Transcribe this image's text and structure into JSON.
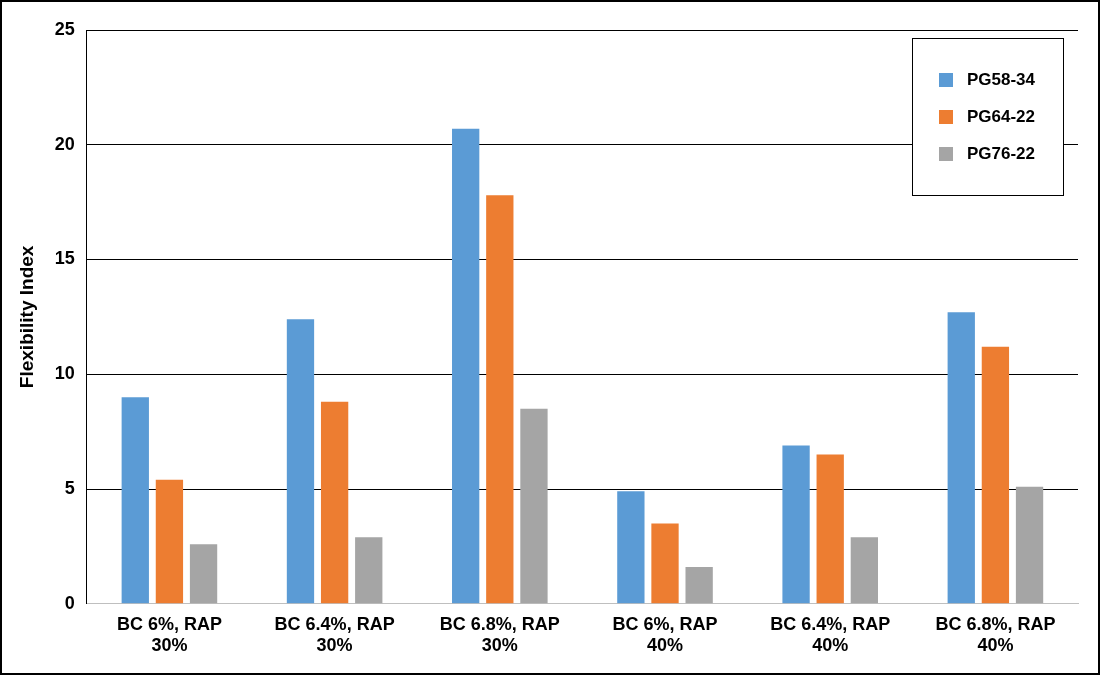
{
  "chart_data": {
    "type": "bar",
    "ylabel": "Flexibility Index",
    "categories": [
      "BC 6%, RAP 30%",
      "BC 6.4%, RAP 30%",
      "BC 6.8%, RAP 30%",
      "BC 6%, RAP 40%",
      "BC 6.4%, RAP 40%",
      "BC 6.8%, RAP 40%"
    ],
    "series": [
      {
        "name": "PG58-34",
        "color": "#5b9bd5",
        "values": [
          9.0,
          12.4,
          20.7,
          4.9,
          6.9,
          12.7
        ]
      },
      {
        "name": "PG64-22",
        "color": "#ed7d31",
        "values": [
          5.4,
          8.8,
          17.8,
          3.5,
          6.5,
          11.2
        ]
      },
      {
        "name": "PG76-22",
        "color": "#a5a5a5",
        "values": [
          2.6,
          2.9,
          8.5,
          1.6,
          2.9,
          5.1
        ]
      }
    ],
    "ylim": [
      0,
      25
    ],
    "yticks": [
      0,
      5,
      10,
      15,
      20,
      25
    ],
    "grid": "y",
    "legend": "top right"
  }
}
